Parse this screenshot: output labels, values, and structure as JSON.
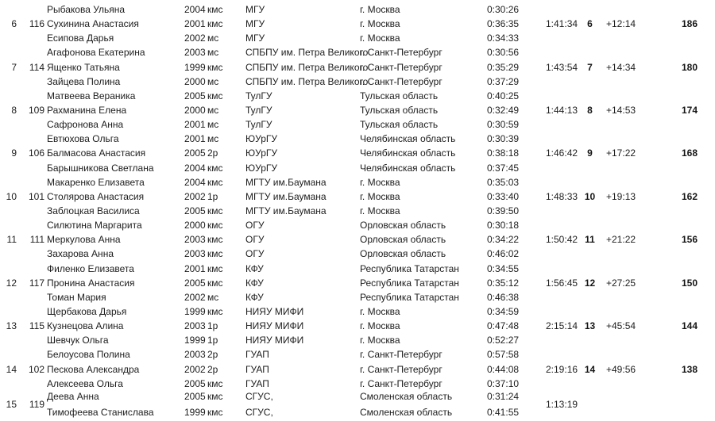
{
  "colors": {
    "text": "#1d1d1d",
    "background": "#ffffff"
  },
  "table": {
    "rows": [
      {
        "name": "Рыбакова Ульяна",
        "year": "2004",
        "rank": "кмс",
        "team": "МГУ",
        "region": "г. Москва",
        "leg_time": "0:30:26"
      },
      {
        "place": "6",
        "bib": "116",
        "name": "Сухинина Анастасия",
        "year": "2001",
        "rank": "кмс",
        "team": "МГУ",
        "region": "г. Москва",
        "leg_time": "0:36:35",
        "total_time": "1:41:34",
        "finish_place": "6",
        "gap": "+12:14",
        "points": "186"
      },
      {
        "name": "Есипова Дарья",
        "year": "2002",
        "rank": "мс",
        "team": "МГУ",
        "region": "г. Москва",
        "leg_time": "0:34:33"
      },
      {
        "name": "Агафонова Екатерина",
        "year": "2003",
        "rank": "мс",
        "team": "СПБПУ им. Петра Великого",
        "region": "г. Санкт-Петербург",
        "leg_time": "0:30:56"
      },
      {
        "place": "7",
        "bib": "114",
        "name": "Ященко Татьяна",
        "year": "1999",
        "rank": "кмс",
        "team": "СПБПУ им. Петра Великого",
        "region": "г. Санкт-Петербург",
        "leg_time": "0:35:29",
        "total_time": "1:43:54",
        "finish_place": "7",
        "gap": "+14:34",
        "points": "180"
      },
      {
        "name": "Зайцева Полина",
        "year": "2000",
        "rank": "мс",
        "team": "СПБПУ им. Петра Великого",
        "region": "г. Санкт-Петербург",
        "leg_time": "0:37:29"
      },
      {
        "name": "Матвеева Вераника",
        "year": "2005",
        "rank": "кмс",
        "team": "ТулГУ",
        "region": "Тульская область",
        "leg_time": "0:40:25"
      },
      {
        "place": "8",
        "bib": "109",
        "name": "Рахманина Елена",
        "year": "2000",
        "rank": "мс",
        "team": "ТулГУ",
        "region": "Тульская область",
        "leg_time": "0:32:49",
        "total_time": "1:44:13",
        "finish_place": "8",
        "gap": "+14:53",
        "points": "174"
      },
      {
        "name": "Сафронова Анна",
        "year": "2001",
        "rank": "мс",
        "team": "ТулГУ",
        "region": "Тульская область",
        "leg_time": "0:30:59"
      },
      {
        "name": "Евтюхова Ольга",
        "year": "2001",
        "rank": "мс",
        "team": "ЮУрГУ",
        "region": "Челябинская область",
        "leg_time": "0:30:39"
      },
      {
        "place": "9",
        "bib": "106",
        "name": "Балмасова Анастасия",
        "year": "2005",
        "rank": "2р",
        "team": "ЮУрГУ",
        "region": "Челябинская область",
        "leg_time": "0:38:18",
        "total_time": "1:46:42",
        "finish_place": "9",
        "gap": "+17:22",
        "points": "168"
      },
      {
        "name": "Барышникова Светлана",
        "year": "2004",
        "rank": "кмс",
        "team": "ЮУрГУ",
        "region": "Челябинская область",
        "leg_time": "0:37:45"
      },
      {
        "name": "Макаренко Елизавета",
        "year": "2004",
        "rank": "кмс",
        "team": "МГТУ им.Баумана",
        "region": "г. Москва",
        "leg_time": "0:35:03"
      },
      {
        "place": "10",
        "bib": "101",
        "name": "Столярова Анастасия",
        "year": "2002",
        "rank": "1р",
        "team": "МГТУ им.Баумана",
        "region": "г. Москва",
        "leg_time": "0:33:40",
        "total_time": "1:48:33",
        "finish_place": "10",
        "gap": "+19:13",
        "points": "162"
      },
      {
        "name": "Заблоцкая Василиса",
        "year": "2005",
        "rank": "кмс",
        "team": "МГТУ им.Баумана",
        "region": "г. Москва",
        "leg_time": "0:39:50"
      },
      {
        "name": "Силютина Маргарита",
        "year": "2000",
        "rank": "кмс",
        "team": "ОГУ",
        "region": "Орловская область",
        "leg_time": "0:30:18"
      },
      {
        "place": "11",
        "bib": "111",
        "name": "Меркулова Анна",
        "year": "2003",
        "rank": "кмс",
        "team": "ОГУ",
        "region": "Орловская область",
        "leg_time": "0:34:22",
        "total_time": "1:50:42",
        "finish_place": "11",
        "gap": "+21:22",
        "points": "156"
      },
      {
        "name": "Захарова Анна",
        "year": "2003",
        "rank": "кмс",
        "team": "ОГУ",
        "region": "Орловская область",
        "leg_time": "0:46:02"
      },
      {
        "name": "Филенко Елизавета",
        "year": "2001",
        "rank": "кмс",
        "team": "КФУ",
        "region": "Республика Татарстан",
        "leg_time": "0:34:55"
      },
      {
        "place": "12",
        "bib": "117",
        "name": "Пронина Анастасия",
        "year": "2005",
        "rank": "кмс",
        "team": "КФУ",
        "region": "Республика Татарстан",
        "leg_time": "0:35:12",
        "total_time": "1:56:45",
        "finish_place": "12",
        "gap": "+27:25",
        "points": "150"
      },
      {
        "name": "Томан Мария",
        "year": "2002",
        "rank": "мс",
        "team": "КФУ",
        "region": "Республика Татарстан",
        "leg_time": "0:46:38"
      },
      {
        "name": "Щербакова Дарья",
        "year": "1999",
        "rank": "кмс",
        "team": "НИЯУ МИФИ",
        "region": "г. Москва",
        "leg_time": "0:34:59"
      },
      {
        "place": "13",
        "bib": "115",
        "name": "Кузнецова Алина",
        "year": "2003",
        "rank": "1р",
        "team": "НИЯУ МИФИ",
        "region": "г. Москва",
        "leg_time": "0:47:48",
        "total_time": "2:15:14",
        "finish_place": "13",
        "gap": "+45:54",
        "points": "144"
      },
      {
        "name": "Шевчук Ольга",
        "year": "1999",
        "rank": "1р",
        "team": "НИЯУ МИФИ",
        "region": "г. Москва",
        "leg_time": "0:52:27"
      },
      {
        "name": "Белоусова Полина",
        "year": "2003",
        "rank": "2р",
        "team": "ГУАП",
        "region": "г. Санкт-Петербург",
        "leg_time": "0:57:58"
      },
      {
        "place": "14",
        "bib": "102",
        "name": "Пескова Александра",
        "year": "2002",
        "rank": "2р",
        "team": "ГУАП",
        "region": "г. Санкт-Петербург",
        "leg_time": "0:44:08",
        "total_time": "2:19:16",
        "finish_place": "14",
        "gap": "+49:56",
        "points": "138"
      },
      {
        "name": "Алексеева Ольга",
        "year": "2005",
        "rank": "кмс",
        "team": "ГУАП",
        "region": "г. Санкт-Петербург",
        "leg_time": "0:37:10"
      },
      {
        "place": "15",
        "bib": "119",
        "straddle": true,
        "name": "Деева Анна",
        "year": "2005",
        "rank": "кмс",
        "team": "СГУС,",
        "region": "Смоленская область",
        "leg_time": "0:31:24",
        "total_time": "1:13:19"
      },
      {
        "name": "Тимофеева Станислава",
        "year": "1999",
        "rank": "кмс",
        "team": "СГУС,",
        "region": "Смоленская область",
        "leg_time": "0:41:55"
      }
    ]
  }
}
